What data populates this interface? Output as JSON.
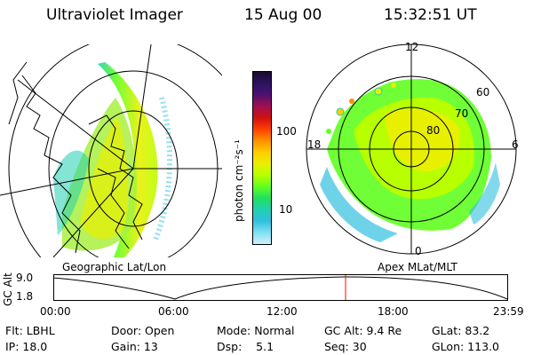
{
  "header": {
    "instrument": "Ultraviolet Imager",
    "date": "15 Aug 00",
    "time": "15:32:51 UT"
  },
  "colorbar": {
    "unit_label": "photon cm⁻²s⁻¹",
    "ticks": [
      "100",
      "10"
    ],
    "colors": [
      "#1a0a2e",
      "#2a1460",
      "#501070",
      "#a01050",
      "#d01010",
      "#ff4000",
      "#ff9000",
      "#ffcc00",
      "#e8f000",
      "#b8ff00",
      "#60ff20",
      "#20e060",
      "#20d0b0",
      "#30c0e0",
      "#80e0f0",
      "#d0f0f8"
    ]
  },
  "left_panel": {
    "label": "Geographic Lat/Lon"
  },
  "right_panel": {
    "label": "Apex MLat/MLT",
    "mlt_labels": {
      "top": "12",
      "left": "18",
      "right": "6",
      "bottom": "0"
    },
    "lat_labels": [
      "60",
      "70",
      "80"
    ]
  },
  "altitude_strip": {
    "y_label": "GC Alt",
    "y_ticks": [
      "9.0",
      "1.8"
    ],
    "x_ticks": [
      "00:00",
      "06:00",
      "12:00",
      "18:00",
      "23:59"
    ],
    "current_marker_color": "#ff0000"
  },
  "status": {
    "row1": {
      "flt": "Flt: LBHL",
      "door": "Door: Open",
      "mode": "Mode: Normal",
      "gcalt": "GC Alt: 9.4 Re",
      "glat": "GLat: 83.2"
    },
    "row2": {
      "ip": "IP: 18.0",
      "gain": "Gain: 13",
      "dsp": "Dsp:    5.1",
      "seq": "Seq: 30",
      "glon": "GLon: 113.0"
    }
  }
}
